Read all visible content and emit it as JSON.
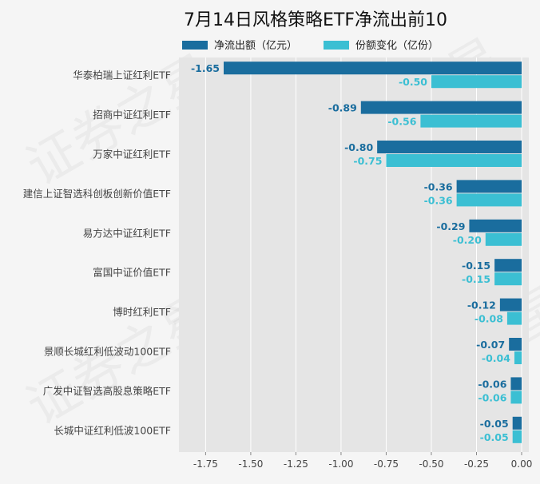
{
  "chart_data": {
    "type": "bar",
    "orientation": "horizontal",
    "title": "7月14日风格策略ETF净流出前10",
    "categories": [
      "华泰柏瑞上证红利ETF",
      "招商中证红利ETF",
      "万家中证红利ETF",
      "建信上证智选科创板创新价值ETF",
      "易方达中证红利ETF",
      "富国中证价值ETF",
      "博时红利ETF",
      "景顺长城红利低波动100ETF",
      "广发中证智选高股息策略ETF",
      "长城中证红利低波100ETF"
    ],
    "series": [
      {
        "name": "净流出额（亿元）",
        "color": "#1a6d9e",
        "values": [
          -1.65,
          -0.89,
          -0.8,
          -0.36,
          -0.29,
          -0.15,
          -0.12,
          -0.07,
          -0.06,
          -0.05
        ],
        "labels": [
          "-1.65",
          "-0.89",
          "-0.80",
          "-0.36",
          "-0.29",
          "-0.15",
          "-0.12",
          "-0.07",
          "-0.06",
          "-0.05"
        ]
      },
      {
        "name": "份额变化（亿份）",
        "color": "#3bbfd3",
        "values": [
          -0.5,
          -0.56,
          -0.75,
          -0.36,
          -0.2,
          -0.15,
          -0.08,
          -0.04,
          -0.06,
          -0.05
        ],
        "labels": [
          "-0.50",
          "-0.56",
          "-0.75",
          "-0.36",
          "-0.20",
          "-0.15",
          "-0.08",
          "-0.04",
          "-0.06",
          "-0.05"
        ]
      }
    ],
    "xlim": [
      -1.9,
      0.0
    ],
    "xticks": [
      "-1.75",
      "-1.50",
      "-1.25",
      "-1.00",
      "-0.75",
      "-0.50",
      "-0.25",
      "0.00"
    ],
    "xtick_values": [
      -1.75,
      -1.5,
      -1.25,
      -1.0,
      -0.75,
      -0.5,
      -0.25,
      0.0
    ],
    "grid": true,
    "legend_position": "top"
  },
  "watermark_text": "证券之星"
}
